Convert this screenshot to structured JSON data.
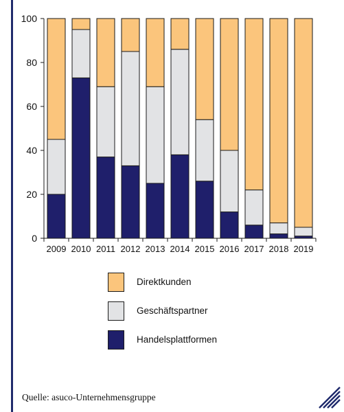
{
  "chart_data": {
    "type": "bar",
    "stacked": true,
    "categories": [
      "2009",
      "2010",
      "2011",
      "2012",
      "2013",
      "2014",
      "2015",
      "2016",
      "2017",
      "2018",
      "2019"
    ],
    "series": [
      {
        "name": "Handelsplattformen",
        "values": [
          20,
          73,
          37,
          33,
          25,
          38,
          26,
          12,
          6,
          2,
          1
        ]
      },
      {
        "name": "Geschäftspartner",
        "values": [
          25,
          22,
          32,
          52,
          44,
          48,
          28,
          28,
          16,
          5,
          4
        ]
      },
      {
        "name": "Direktkunden",
        "values": [
          55,
          5,
          31,
          15,
          31,
          14,
          46,
          60,
          78,
          93,
          95
        ]
      }
    ],
    "yticks": [
      0,
      20,
      40,
      60,
      80,
      100
    ],
    "ylim": [
      0,
      100
    ],
    "grid": false,
    "legend_placement": "below"
  },
  "colors": {
    "Direktkunden": "#fbc57c",
    "Geschäftspartner": "#e2e3e5",
    "Handelsplattformen": "#1f1f6b",
    "accent_rule": "#1f2a6b"
  },
  "legend": [
    {
      "label": "Direktkunden"
    },
    {
      "label": "Geschäftspartner"
    },
    {
      "label": "Handelsplattformen"
    }
  ],
  "source": "Quelle: asuco-Unternehmensgruppe",
  "icons": {
    "corner": "diagonal-stripes-icon"
  }
}
